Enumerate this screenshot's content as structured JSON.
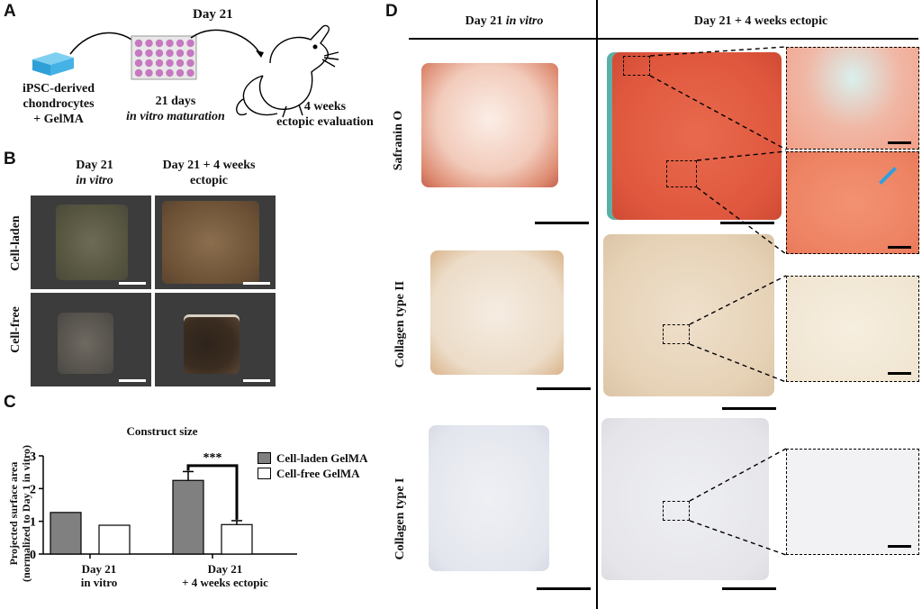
{
  "panelA": {
    "letter": "A",
    "source_label": [
      "iPSC-derived",
      "chondrocytes",
      "+ GelMA"
    ],
    "day_label": "Day 21",
    "maturation_label": [
      "21 days",
      "in vitro maturation"
    ],
    "ectopic_label": [
      "4 weeks",
      "ectopic evaluation"
    ]
  },
  "panelB": {
    "letter": "B",
    "col1": [
      "Day 21",
      "in vitro"
    ],
    "col2": [
      "Day 21 + 4 weeks",
      "ectopic"
    ],
    "row1": "Cell-laden",
    "row2": "Cell-free"
  },
  "panelC": {
    "letter": "C"
  },
  "chart_data": {
    "type": "bar",
    "title": "Construct size",
    "ylabel": "Projected surface area (normalized to Day 1 in vitro)",
    "ylabel_line1": "Projected surface area",
    "ylabel_line2": "(normalized to Day 1 in vitro)",
    "ylim": [
      0,
      3
    ],
    "yticks": [
      "0",
      "1",
      "2",
      "3"
    ],
    "categories": [
      "Day 21 in vitro",
      "Day 21 + 4 weeks ectopic"
    ],
    "category_lines": [
      [
        "Day 21",
        "in vitro"
      ],
      [
        "Day 21",
        "+ 4 weeks ectopic"
      ]
    ],
    "series": [
      {
        "name": "Cell-laden GelMA",
        "values": [
          1.27,
          2.25
        ],
        "errors": [
          0,
          0.27
        ],
        "color": "#808080"
      },
      {
        "name": "Cell-free GelMA",
        "values": [
          0.88,
          0.9
        ],
        "errors": [
          0,
          0.12
        ],
        "color": "#ffffff"
      }
    ],
    "annotation": "***",
    "legend": "top-right"
  },
  "panelD": {
    "letter": "D",
    "col1": "Day 21 in vitro",
    "col1_plain": "Day 21 ",
    "col1_italic": "in vitro",
    "col2": "Day 21 + 4 weeks ectopic",
    "rows": [
      "Safranin O",
      "Collagen type II",
      "Collagen type I"
    ]
  }
}
